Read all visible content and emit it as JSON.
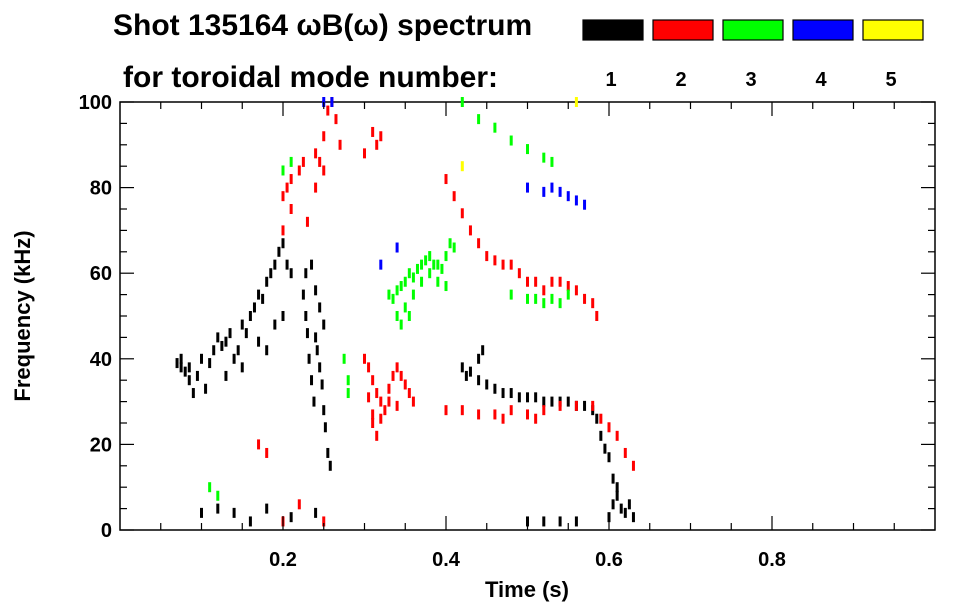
{
  "chart_data": {
    "type": "scatter",
    "title": "Shot 135164 ωB(ω) spectrum",
    "legend_caption": "for toroidal mode number:",
    "xlabel": "Time (s)",
    "ylabel": "Frequency (kHz)",
    "xlim": [
      0.0,
      1.0
    ],
    "ylim": [
      0,
      100
    ],
    "x_ticks": [
      0.2,
      0.4,
      0.6,
      0.8
    ],
    "x_tick_labels": [
      "0.2",
      "0.4",
      "0.6",
      "0.8"
    ],
    "y_ticks": [
      0,
      20,
      40,
      60,
      80,
      100
    ],
    "y_tick_labels": [
      "0",
      "20",
      "40",
      "60",
      "80",
      "100"
    ],
    "grid": false,
    "legend_position": "top-right",
    "series": [
      {
        "name": "1",
        "color": "#000000",
        "points": [
          [
            0.07,
            39
          ],
          [
            0.075,
            38
          ],
          [
            0.08,
            37
          ],
          [
            0.085,
            35
          ],
          [
            0.09,
            32
          ],
          [
            0.095,
            36
          ],
          [
            0.1,
            40
          ],
          [
            0.11,
            39
          ],
          [
            0.115,
            42
          ],
          [
            0.12,
            45
          ],
          [
            0.125,
            43
          ],
          [
            0.13,
            44
          ],
          [
            0.135,
            46
          ],
          [
            0.14,
            40
          ],
          [
            0.145,
            42
          ],
          [
            0.15,
            48
          ],
          [
            0.155,
            46
          ],
          [
            0.16,
            50
          ],
          [
            0.165,
            52
          ],
          [
            0.17,
            55
          ],
          [
            0.175,
            54
          ],
          [
            0.18,
            58
          ],
          [
            0.185,
            60
          ],
          [
            0.19,
            62
          ],
          [
            0.195,
            65
          ],
          [
            0.2,
            67
          ],
          [
            0.205,
            62
          ],
          [
            0.21,
            60
          ],
          [
            0.13,
            36
          ],
          [
            0.15,
            38
          ],
          [
            0.17,
            44
          ],
          [
            0.19,
            48
          ],
          [
            0.18,
            42
          ],
          [
            0.2,
            50
          ],
          [
            0.225,
            55
          ],
          [
            0.228,
            50
          ],
          [
            0.23,
            46
          ],
          [
            0.232,
            40
          ],
          [
            0.235,
            35
          ],
          [
            0.238,
            30
          ],
          [
            0.24,
            45
          ],
          [
            0.242,
            42
          ],
          [
            0.245,
            38
          ],
          [
            0.248,
            34
          ],
          [
            0.25,
            28
          ],
          [
            0.252,
            24
          ],
          [
            0.255,
            18
          ],
          [
            0.258,
            15
          ],
          [
            0.228,
            60
          ],
          [
            0.235,
            62
          ],
          [
            0.24,
            56
          ],
          [
            0.245,
            52
          ],
          [
            0.25,
            48
          ],
          [
            0.42,
            38
          ],
          [
            0.425,
            36
          ],
          [
            0.43,
            37
          ],
          [
            0.44,
            35
          ],
          [
            0.45,
            34
          ],
          [
            0.46,
            33
          ],
          [
            0.47,
            32
          ],
          [
            0.48,
            32
          ],
          [
            0.49,
            31
          ],
          [
            0.5,
            31
          ],
          [
            0.51,
            31
          ],
          [
            0.52,
            30
          ],
          [
            0.53,
            30
          ],
          [
            0.54,
            30
          ],
          [
            0.55,
            30
          ],
          [
            0.56,
            29
          ],
          [
            0.57,
            29
          ],
          [
            0.58,
            28
          ],
          [
            0.585,
            26
          ],
          [
            0.59,
            22
          ],
          [
            0.595,
            19
          ],
          [
            0.6,
            17
          ],
          [
            0.605,
            12
          ],
          [
            0.61,
            8
          ],
          [
            0.615,
            5
          ],
          [
            0.62,
            4
          ],
          [
            0.625,
            6
          ],
          [
            0.63,
            3
          ],
          [
            0.6,
            3
          ],
          [
            0.605,
            6
          ],
          [
            0.61,
            10
          ],
          [
            0.075,
            40
          ],
          [
            0.085,
            38
          ],
          [
            0.105,
            33
          ],
          [
            0.1,
            4
          ],
          [
            0.12,
            5
          ],
          [
            0.14,
            4
          ],
          [
            0.16,
            2
          ],
          [
            0.18,
            5
          ],
          [
            0.21,
            3
          ],
          [
            0.24,
            4
          ],
          [
            0.5,
            2
          ],
          [
            0.52,
            2
          ],
          [
            0.54,
            2
          ],
          [
            0.56,
            2
          ],
          [
            0.44,
            40
          ],
          [
            0.445,
            42
          ]
        ]
      },
      {
        "name": "2",
        "color": "#ff0000",
        "points": [
          [
            0.2,
            78
          ],
          [
            0.205,
            80
          ],
          [
            0.21,
            82
          ],
          [
            0.22,
            84
          ],
          [
            0.225,
            86
          ],
          [
            0.24,
            88
          ],
          [
            0.245,
            86
          ],
          [
            0.25,
            92
          ],
          [
            0.255,
            98
          ],
          [
            0.26,
            100
          ],
          [
            0.265,
            96
          ],
          [
            0.27,
            90
          ],
          [
            0.2,
            70
          ],
          [
            0.21,
            75
          ],
          [
            0.24,
            80
          ],
          [
            0.25,
            84
          ],
          [
            0.23,
            72
          ],
          [
            0.3,
            40
          ],
          [
            0.305,
            38
          ],
          [
            0.31,
            35
          ],
          [
            0.315,
            32
          ],
          [
            0.32,
            30
          ],
          [
            0.325,
            28
          ],
          [
            0.33,
            33
          ],
          [
            0.335,
            36
          ],
          [
            0.34,
            38
          ],
          [
            0.345,
            36
          ],
          [
            0.35,
            34
          ],
          [
            0.355,
            32
          ],
          [
            0.31,
            25
          ],
          [
            0.315,
            22
          ],
          [
            0.32,
            26
          ],
          [
            0.33,
            30
          ],
          [
            0.34,
            29
          ],
          [
            0.305,
            31
          ],
          [
            0.31,
            27
          ],
          [
            0.36,
            30
          ],
          [
            0.31,
            93
          ],
          [
            0.315,
            90
          ],
          [
            0.32,
            92
          ],
          [
            0.3,
            88
          ],
          [
            0.4,
            82
          ],
          [
            0.41,
            78
          ],
          [
            0.42,
            74
          ],
          [
            0.43,
            70
          ],
          [
            0.44,
            67
          ],
          [
            0.45,
            64
          ],
          [
            0.46,
            63
          ],
          [
            0.47,
            62
          ],
          [
            0.48,
            62
          ],
          [
            0.49,
            60
          ],
          [
            0.5,
            58
          ],
          [
            0.51,
            58
          ],
          [
            0.52,
            56
          ],
          [
            0.53,
            58
          ],
          [
            0.54,
            58
          ],
          [
            0.55,
            57
          ],
          [
            0.56,
            56
          ],
          [
            0.57,
            54
          ],
          [
            0.58,
            53
          ],
          [
            0.585,
            50
          ],
          [
            0.4,
            28
          ],
          [
            0.42,
            28
          ],
          [
            0.44,
            27
          ],
          [
            0.46,
            27
          ],
          [
            0.48,
            28
          ],
          [
            0.5,
            27
          ],
          [
            0.52,
            28
          ],
          [
            0.54,
            29
          ],
          [
            0.56,
            29
          ],
          [
            0.58,
            29
          ],
          [
            0.59,
            26
          ],
          [
            0.6,
            24
          ],
          [
            0.61,
            22
          ],
          [
            0.62,
            18
          ],
          [
            0.63,
            15
          ],
          [
            0.47,
            26
          ],
          [
            0.51,
            26
          ],
          [
            0.17,
            20
          ],
          [
            0.18,
            18
          ],
          [
            0.25,
            2
          ],
          [
            0.22,
            6
          ],
          [
            0.2,
            2
          ]
        ]
      },
      {
        "name": "3",
        "color": "#00ff00",
        "points": [
          [
            0.33,
            55
          ],
          [
            0.335,
            54
          ],
          [
            0.34,
            56
          ],
          [
            0.345,
            57
          ],
          [
            0.35,
            58
          ],
          [
            0.355,
            60
          ],
          [
            0.36,
            59
          ],
          [
            0.365,
            61
          ],
          [
            0.37,
            62
          ],
          [
            0.375,
            63
          ],
          [
            0.38,
            64
          ],
          [
            0.385,
            62
          ],
          [
            0.39,
            62
          ],
          [
            0.395,
            61
          ],
          [
            0.4,
            64
          ],
          [
            0.405,
            67
          ],
          [
            0.41,
            66
          ],
          [
            0.34,
            50
          ],
          [
            0.35,
            52
          ],
          [
            0.36,
            55
          ],
          [
            0.37,
            58
          ],
          [
            0.38,
            60
          ],
          [
            0.39,
            58
          ],
          [
            0.4,
            57
          ],
          [
            0.345,
            48
          ],
          [
            0.355,
            50
          ],
          [
            0.42,
            100
          ],
          [
            0.44,
            96
          ],
          [
            0.46,
            94
          ],
          [
            0.48,
            91
          ],
          [
            0.5,
            89
          ],
          [
            0.52,
            87
          ],
          [
            0.53,
            86
          ],
          [
            0.48,
            55
          ],
          [
            0.5,
            54
          ],
          [
            0.51,
            54
          ],
          [
            0.52,
            53
          ],
          [
            0.53,
            54
          ],
          [
            0.54,
            53
          ],
          [
            0.55,
            55
          ],
          [
            0.2,
            84
          ],
          [
            0.21,
            86
          ],
          [
            0.275,
            40
          ],
          [
            0.28,
            35
          ],
          [
            0.28,
            32
          ],
          [
            0.11,
            10
          ],
          [
            0.12,
            8
          ]
        ]
      },
      {
        "name": "4",
        "color": "#0000ff",
        "points": [
          [
            0.25,
            100
          ],
          [
            0.26,
            100
          ],
          [
            0.5,
            80
          ],
          [
            0.52,
            79
          ],
          [
            0.53,
            80
          ],
          [
            0.54,
            79
          ],
          [
            0.55,
            78
          ],
          [
            0.56,
            77
          ],
          [
            0.57,
            76
          ],
          [
            0.32,
            62
          ],
          [
            0.34,
            66
          ]
        ]
      },
      {
        "name": "5",
        "color": "#ffff00",
        "points": [
          [
            0.56,
            100
          ],
          [
            0.42,
            85
          ]
        ]
      }
    ]
  }
}
